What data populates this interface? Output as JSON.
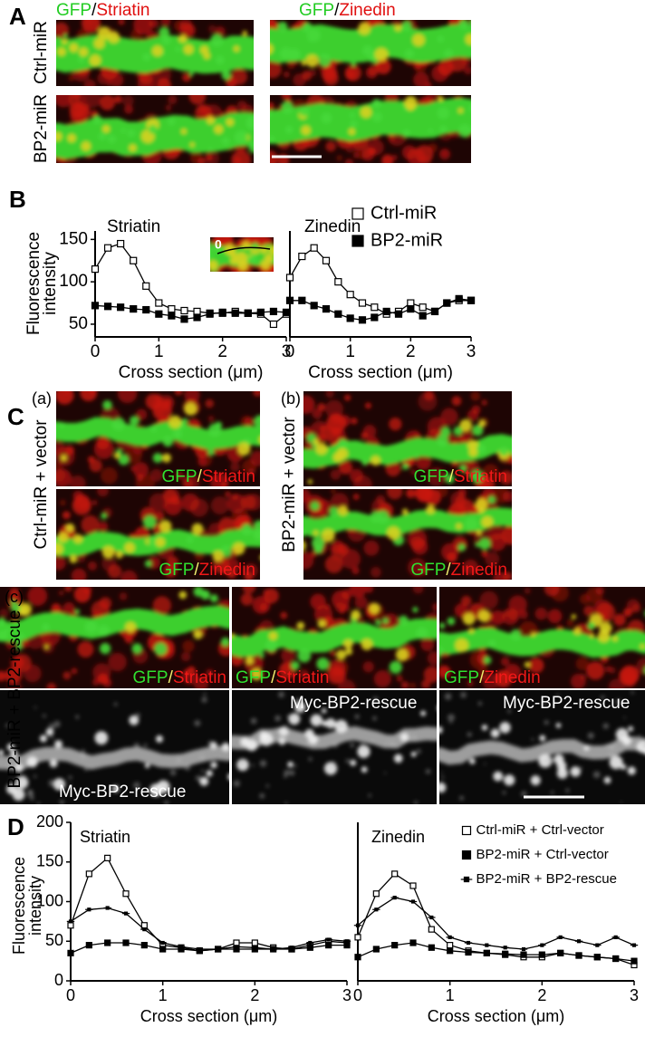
{
  "panels": {
    "A": {
      "letter": "A",
      "columns": [
        [
          "GFP",
          "/",
          "Striatin"
        ],
        [
          "GFP",
          "/",
          "Zinedin"
        ]
      ],
      "rows": [
        "Ctrl-miR",
        "BP2-miR"
      ]
    },
    "B": {
      "letter": "B",
      "inset": "0"
    },
    "C": {
      "letter": "C",
      "subpanels": [
        "(a)",
        "(b)",
        "(c)"
      ],
      "rows": [
        "Ctrl-miR + vector",
        "BP2-miR + vector",
        "BP2-miR + BP2-rescue"
      ],
      "labels": [
        [
          "GFP",
          "/",
          "Striatin"
        ],
        [
          "GFP",
          "/",
          "Zinedin"
        ],
        [
          "GFP",
          "/",
          "Striatin"
        ],
        [
          "GFP",
          "/",
          "Zinedin"
        ],
        [
          "GFP",
          "/",
          "Striatin"
        ],
        [
          "GFP",
          "/",
          "Striatin"
        ],
        [
          "GFP",
          "/",
          "Zinedin"
        ],
        "Myc-BP2-rescue",
        "Myc-BP2-rescue",
        "Myc-BP2-rescue"
      ]
    },
    "D": {
      "letter": "D"
    }
  },
  "chart_data": [
    {
      "type": "line",
      "title": "Striatin",
      "ylabel": [
        "Fluorescence",
        "intensity"
      ],
      "xlabel": "Cross section (μm)",
      "x": [
        0,
        0.2,
        0.4,
        0.6,
        0.8,
        1.0,
        1.2,
        1.4,
        1.6,
        1.8,
        2.0,
        2.2,
        2.4,
        2.6,
        2.8,
        3.0
      ],
      "xlim": [
        0,
        3
      ],
      "xticks": [
        0,
        1,
        2,
        3
      ],
      "ylim": [
        35,
        160
      ],
      "yticks": [
        50,
        100,
        150
      ],
      "series": [
        {
          "color": "#000000",
          "marker": "open",
          "values": [
            115,
            140,
            145,
            125,
            95,
            75,
            68,
            66,
            65,
            63,
            63,
            65,
            63,
            62,
            50,
            62
          ]
        },
        {
          "color": "#000000",
          "marker": "filled",
          "values": [
            72,
            71,
            70,
            68,
            67,
            62,
            60,
            56,
            58,
            62,
            64,
            63,
            63,
            64,
            65,
            64
          ]
        }
      ]
    },
    {
      "type": "line",
      "title": "Zinedin",
      "xlabel": "Cross section (μm)",
      "x": [
        0,
        0.2,
        0.4,
        0.6,
        0.8,
        1.0,
        1.2,
        1.4,
        1.6,
        1.8,
        2.0,
        2.2,
        2.4,
        2.6,
        2.8,
        3.0
      ],
      "xlim": [
        0,
        3
      ],
      "xticks": [
        0,
        1,
        2,
        3
      ],
      "ylim": [
        35,
        160
      ],
      "series": [
        {
          "name": "Ctrl-miR",
          "color": "#000000",
          "marker": "open",
          "values": [
            105,
            130,
            140,
            125,
            100,
            85,
            75,
            70,
            62,
            65,
            75,
            70,
            65,
            75,
            78,
            78
          ]
        },
        {
          "name": "BP2-miR",
          "color": "#000000",
          "marker": "filled",
          "values": [
            78,
            78,
            72,
            68,
            62,
            57,
            55,
            58,
            65,
            62,
            68,
            60,
            65,
            75,
            80,
            78
          ]
        }
      ]
    },
    {
      "type": "line",
      "title": "Striatin",
      "ylabel": [
        "Fluorescence",
        "intensity"
      ],
      "xlabel": "Cross section (μm)",
      "x": [
        0,
        0.2,
        0.4,
        0.6,
        0.8,
        1.0,
        1.2,
        1.4,
        1.6,
        1.8,
        2.0,
        2.2,
        2.4,
        2.6,
        2.8,
        3.0
      ],
      "xlim": [
        0,
        3
      ],
      "xticks": [
        0,
        1,
        2,
        3
      ],
      "ylim": [
        0,
        200
      ],
      "yticks": [
        0,
        50,
        100,
        150,
        200
      ],
      "series": [
        {
          "color": "#000000",
          "marker": "open",
          "values": [
            70,
            135,
            155,
            110,
            70,
            45,
            42,
            38,
            40,
            48,
            48,
            42,
            40,
            45,
            50,
            48
          ]
        },
        {
          "color": "#000000",
          "marker": "filled",
          "values": [
            35,
            45,
            48,
            48,
            45,
            40,
            40,
            38,
            40,
            40,
            40,
            40,
            40,
            42,
            45,
            45
          ]
        },
        {
          "color": "#000000",
          "marker": "cross",
          "values": [
            75,
            90,
            92,
            85,
            65,
            48,
            43,
            40,
            40,
            43,
            42,
            40,
            42,
            48,
            52,
            50
          ]
        }
      ]
    },
    {
      "type": "line",
      "title": "Zinedin",
      "xlabel": "Cross section (μm)",
      "x": [
        0,
        0.2,
        0.4,
        0.6,
        0.8,
        1.0,
        1.2,
        1.4,
        1.6,
        1.8,
        2.0,
        2.2,
        2.4,
        2.6,
        2.8,
        3.0
      ],
      "xlim": [
        0,
        3
      ],
      "xticks": [
        0,
        1,
        2,
        3
      ],
      "ylim": [
        0,
        200
      ],
      "series": [
        {
          "name": "Ctrl-miR + Ctrl-vector",
          "color": "#000000",
          "marker": "open",
          "values": [
            55,
            110,
            135,
            120,
            65,
            45,
            38,
            35,
            33,
            30,
            30,
            35,
            32,
            30,
            28,
            20
          ]
        },
        {
          "name": "BP2-miR + Ctrl-vector",
          "color": "#000000",
          "marker": "filled",
          "values": [
            30,
            40,
            45,
            48,
            42,
            38,
            36,
            35,
            34,
            33,
            33,
            35,
            32,
            30,
            28,
            25
          ]
        },
        {
          "name": "BP2-miR + BP2-rescue",
          "color": "#000000",
          "marker": "cross",
          "values": [
            70,
            90,
            105,
            100,
            80,
            55,
            48,
            45,
            42,
            40,
            45,
            55,
            50,
            45,
            55,
            45
          ]
        }
      ]
    }
  ]
}
